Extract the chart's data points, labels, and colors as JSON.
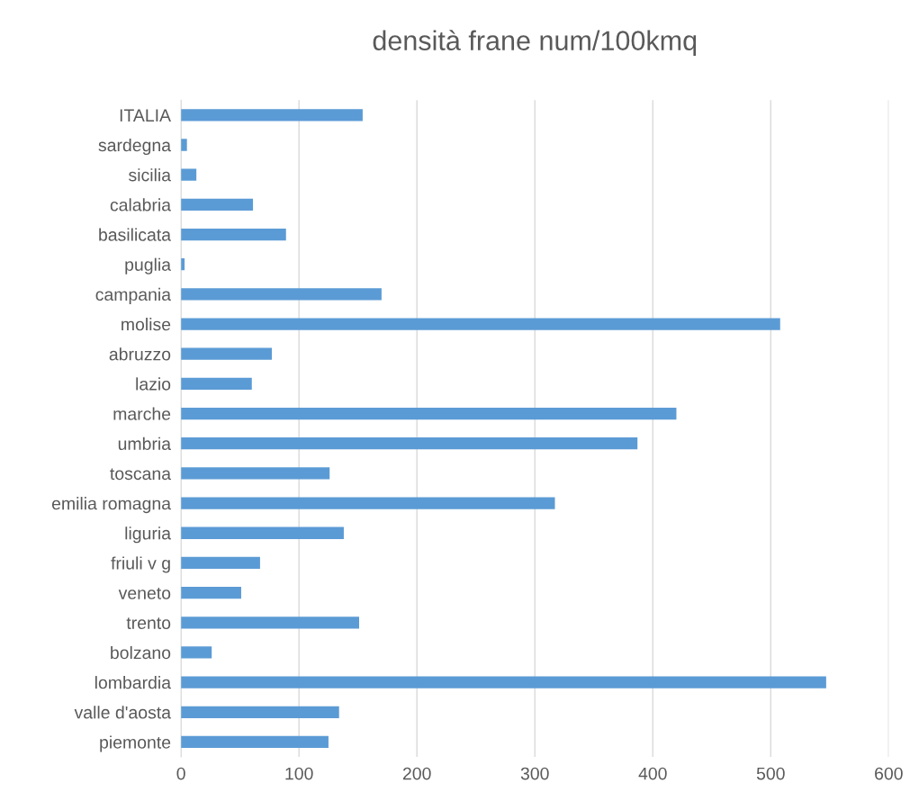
{
  "chart_data": {
    "type": "bar",
    "orientation": "horizontal",
    "title": "densità frane num/100kmq",
    "categories": [
      "ITALIA",
      "sardegna",
      "sicilia",
      "calabria",
      "basilicata",
      "puglia",
      "campania",
      "molise",
      "abruzzo",
      "lazio",
      "marche",
      "umbria",
      "toscana",
      "emilia romagna",
      "liguria",
      "friuli v g",
      "veneto",
      "trento",
      "bolzano",
      "lombardia",
      "valle d'aosta",
      "piemonte"
    ],
    "values": [
      154,
      5,
      13,
      61,
      89,
      3,
      170,
      508,
      77,
      60,
      420,
      387,
      126,
      317,
      138,
      67,
      51,
      151,
      26,
      547,
      134,
      125
    ],
    "color": "#5b9bd5",
    "xlim": [
      0,
      600
    ],
    "xticks": [
      0,
      100,
      200,
      300,
      400,
      500,
      600
    ],
    "grid": "x",
    "legend": false
  }
}
